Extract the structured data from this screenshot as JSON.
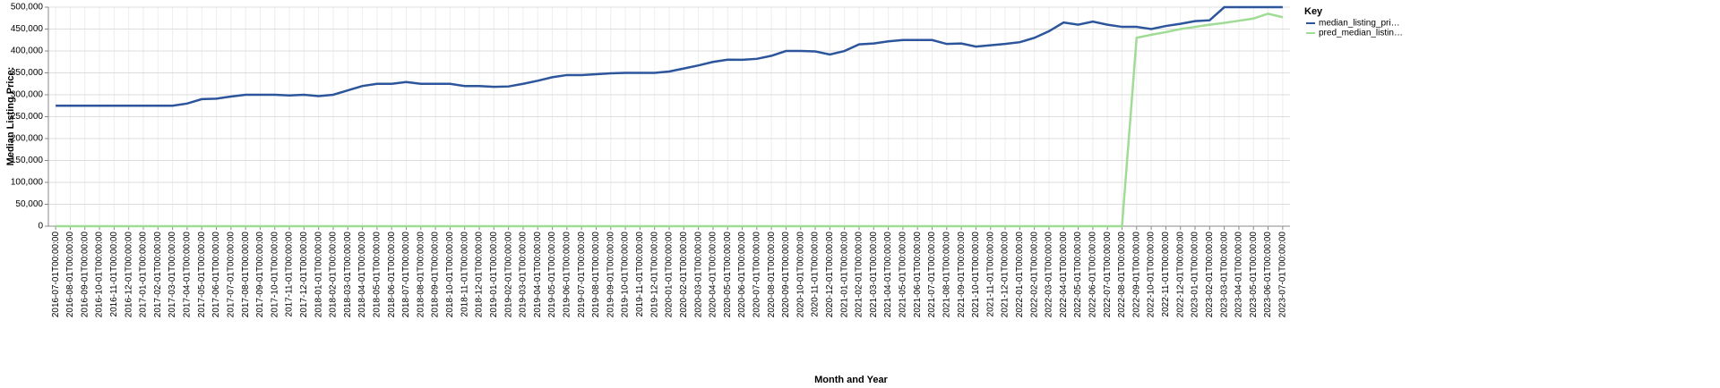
{
  "chart_data": {
    "type": "line",
    "x_label": "Month and Year",
    "y_label": "Median Listing Price:",
    "legend_title": "Key",
    "legend": "right",
    "grid": true,
    "categories": [
      "2016-07-01T00:00:00",
      "2016-08-01T00:00:00",
      "2016-09-01T00:00:00",
      "2016-10-01T00:00:00",
      "2016-11-01T00:00:00",
      "2016-12-01T00:00:00",
      "2017-01-01T00:00:00",
      "2017-02-01T00:00:00",
      "2017-03-01T00:00:00",
      "2017-04-01T00:00:00",
      "2017-05-01T00:00:00",
      "2017-06-01T00:00:00",
      "2017-07-01T00:00:00",
      "2017-08-01T00:00:00",
      "2017-09-01T00:00:00",
      "2017-10-01T00:00:00",
      "2017-11-01T00:00:00",
      "2017-12-01T00:00:00",
      "2018-01-01T00:00:00",
      "2018-02-01T00:00:00",
      "2018-03-01T00:00:00",
      "2018-04-01T00:00:00",
      "2018-05-01T00:00:00",
      "2018-06-01T00:00:00",
      "2018-07-01T00:00:00",
      "2018-08-01T00:00:00",
      "2018-09-01T00:00:00",
      "2018-10-01T00:00:00",
      "2018-11-01T00:00:00",
      "2018-12-01T00:00:00",
      "2019-01-01T00:00:00",
      "2019-02-01T00:00:00",
      "2019-03-01T00:00:00",
      "2019-04-01T00:00:00",
      "2019-05-01T00:00:00",
      "2019-06-01T00:00:00",
      "2019-07-01T00:00:00",
      "2019-08-01T00:00:00",
      "2019-09-01T00:00:00",
      "2019-10-01T00:00:00",
      "2019-11-01T00:00:00",
      "2019-12-01T00:00:00",
      "2020-01-01T00:00:00",
      "2020-02-01T00:00:00",
      "2020-03-01T00:00:00",
      "2020-04-01T00:00:00",
      "2020-05-01T00:00:00",
      "2020-06-01T00:00:00",
      "2020-07-01T00:00:00",
      "2020-08-01T00:00:00",
      "2020-09-01T00:00:00",
      "2020-10-01T00:00:00",
      "2020-11-01T00:00:00",
      "2020-12-01T00:00:00",
      "2021-01-01T00:00:00",
      "2021-02-01T00:00:00",
      "2021-03-01T00:00:00",
      "2021-04-01T00:00:00",
      "2021-05-01T00:00:00",
      "2021-06-01T00:00:00",
      "2021-07-01T00:00:00",
      "2021-08-01T00:00:00",
      "2021-09-01T00:00:00",
      "2021-10-01T00:00:00",
      "2021-11-01T00:00:00",
      "2021-12-01T00:00:00",
      "2022-01-01T00:00:00",
      "2022-02-01T00:00:00",
      "2022-03-01T00:00:00",
      "2022-04-01T00:00:00",
      "2022-05-01T00:00:00",
      "2022-06-01T00:00:00",
      "2022-07-01T00:00:00",
      "2022-08-01T00:00:00",
      "2022-09-01T00:00:00",
      "2022-10-01T00:00:00",
      "2022-11-01T00:00:00",
      "2022-12-01T00:00:00",
      "2023-01-01T00:00:00",
      "2023-02-01T00:00:00",
      "2023-03-01T00:00:00",
      "2023-04-01T00:00:00",
      "2023-05-01T00:00:00",
      "2023-06-01T00:00:00",
      "2023-07-01T00:00:00"
    ],
    "series": [
      {
        "name": "median_listing_pri…",
        "color": "#2c559c",
        "values": [
          275000,
          275000,
          275000,
          275000,
          275000,
          275000,
          274900,
          275000,
          275000,
          280000,
          290000,
          291000,
          296000,
          299900,
          300000,
          299900,
          298500,
          299900,
          297000,
          300000,
          310000,
          320000,
          325000,
          325000,
          329000,
          325000,
          325000,
          325000,
          320000,
          319900,
          318000,
          319000,
          325000,
          332000,
          340000,
          345000,
          345000,
          347000,
          349000,
          350000,
          350000,
          350000,
          353000,
          360000,
          367000,
          375000,
          380000,
          379900,
          382000,
          389000,
          399900,
          400000,
          399000,
          392000,
          399900,
          415000,
          417000,
          422000,
          425000,
          425000,
          425000,
          416000,
          417000,
          410000,
          413000,
          416000,
          420000,
          429900,
          445000,
          465000,
          460000,
          467000,
          460000,
          455000,
          455000,
          450000,
          457000,
          462000,
          468000,
          470000,
          499900,
          499900,
          500000,
          500000,
          500000
        ]
      },
      {
        "name": "pred_median_listin…",
        "color": "#a1dc96",
        "values": [
          0,
          0,
          0,
          0,
          0,
          0,
          0,
          0,
          0,
          0,
          0,
          0,
          0,
          0,
          0,
          0,
          0,
          0,
          0,
          0,
          0,
          0,
          0,
          0,
          0,
          0,
          0,
          0,
          0,
          0,
          0,
          0,
          0,
          0,
          0,
          0,
          0,
          0,
          0,
          0,
          0,
          0,
          0,
          0,
          0,
          0,
          0,
          0,
          0,
          0,
          0,
          0,
          0,
          0,
          0,
          0,
          0,
          0,
          0,
          0,
          0,
          0,
          0,
          0,
          0,
          0,
          0,
          0,
          0,
          0,
          0,
          0,
          0,
          0,
          430000,
          437000,
          443000,
          450000,
          455000,
          460000,
          464000,
          469000,
          474000,
          485000,
          477000
        ]
      }
    ],
    "ylim": [
      0,
      500000
    ],
    "yticks": [
      0,
      {
        "value": 50000,
        "label": "50,000"
      },
      {
        "value": 100000,
        "label": "100,000"
      },
      {
        "value": 150000,
        "label": "150,000"
      },
      {
        "value": 200000,
        "label": "200,000"
      },
      {
        "value": 250000,
        "label": "250,000"
      },
      {
        "value": 300000,
        "label": "300,000"
      },
      {
        "value": 350000,
        "label": "350,000"
      },
      {
        "value": 400000,
        "label": "400,000"
      },
      {
        "value": 450000,
        "label": "450,000"
      },
      {
        "value": 500000,
        "label": "500,000"
      }
    ]
  }
}
